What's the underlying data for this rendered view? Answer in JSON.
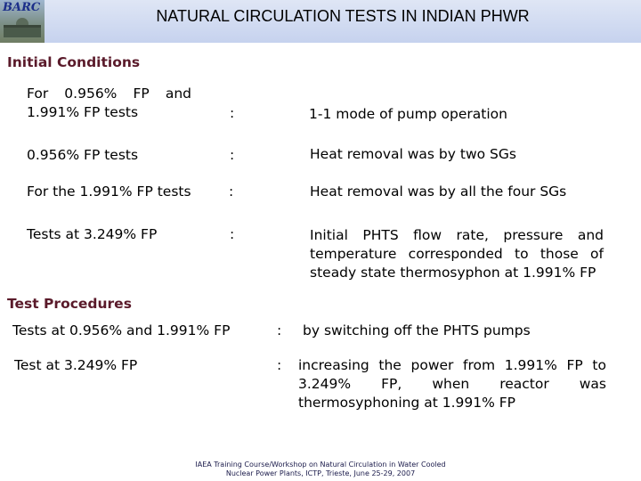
{
  "header": {
    "logo_text": "BARC",
    "title": "NATURAL CIRCULATION TESTS IN INDIAN PHWR"
  },
  "initial_conditions": {
    "heading": "Initial Conditions",
    "rows": [
      {
        "label": "For 0.956% FP and 1.991% FP tests",
        "colon": ":",
        "value": "1-1 mode of pump operation"
      },
      {
        "label": "0.956% FP tests",
        "colon": ":",
        "value": "Heat removal was by two SGs"
      },
      {
        "label": "For the 1.991% FP tests",
        "colon": ":",
        "value": "Heat removal was by all the four SGs"
      },
      {
        "label": "Tests at 3.249% FP",
        "colon": ":",
        "value": "Initial PHTS flow rate, pressure and temperature corresponded to those of steady state thermosyphon at 1.991% FP"
      }
    ]
  },
  "test_procedures": {
    "heading": "Test Procedures",
    "rows": [
      {
        "label": "Tests at 0.956% and 1.991% FP",
        "colon": ":",
        "value": "by switching off the PHTS pumps"
      },
      {
        "label": "Test at 3.249% FP",
        "colon": ":",
        "value": "increasing the power from 1.991% FP to 3.249% FP, when reactor was thermosyphoning at 1.991% FP"
      }
    ]
  },
  "footer": {
    "line1": "IAEA Training Course/Workshop on Natural Circulation in Water Cooled",
    "line2": "Nuclear Power Plants, ICTP, Trieste, June 25-29, 2007"
  }
}
